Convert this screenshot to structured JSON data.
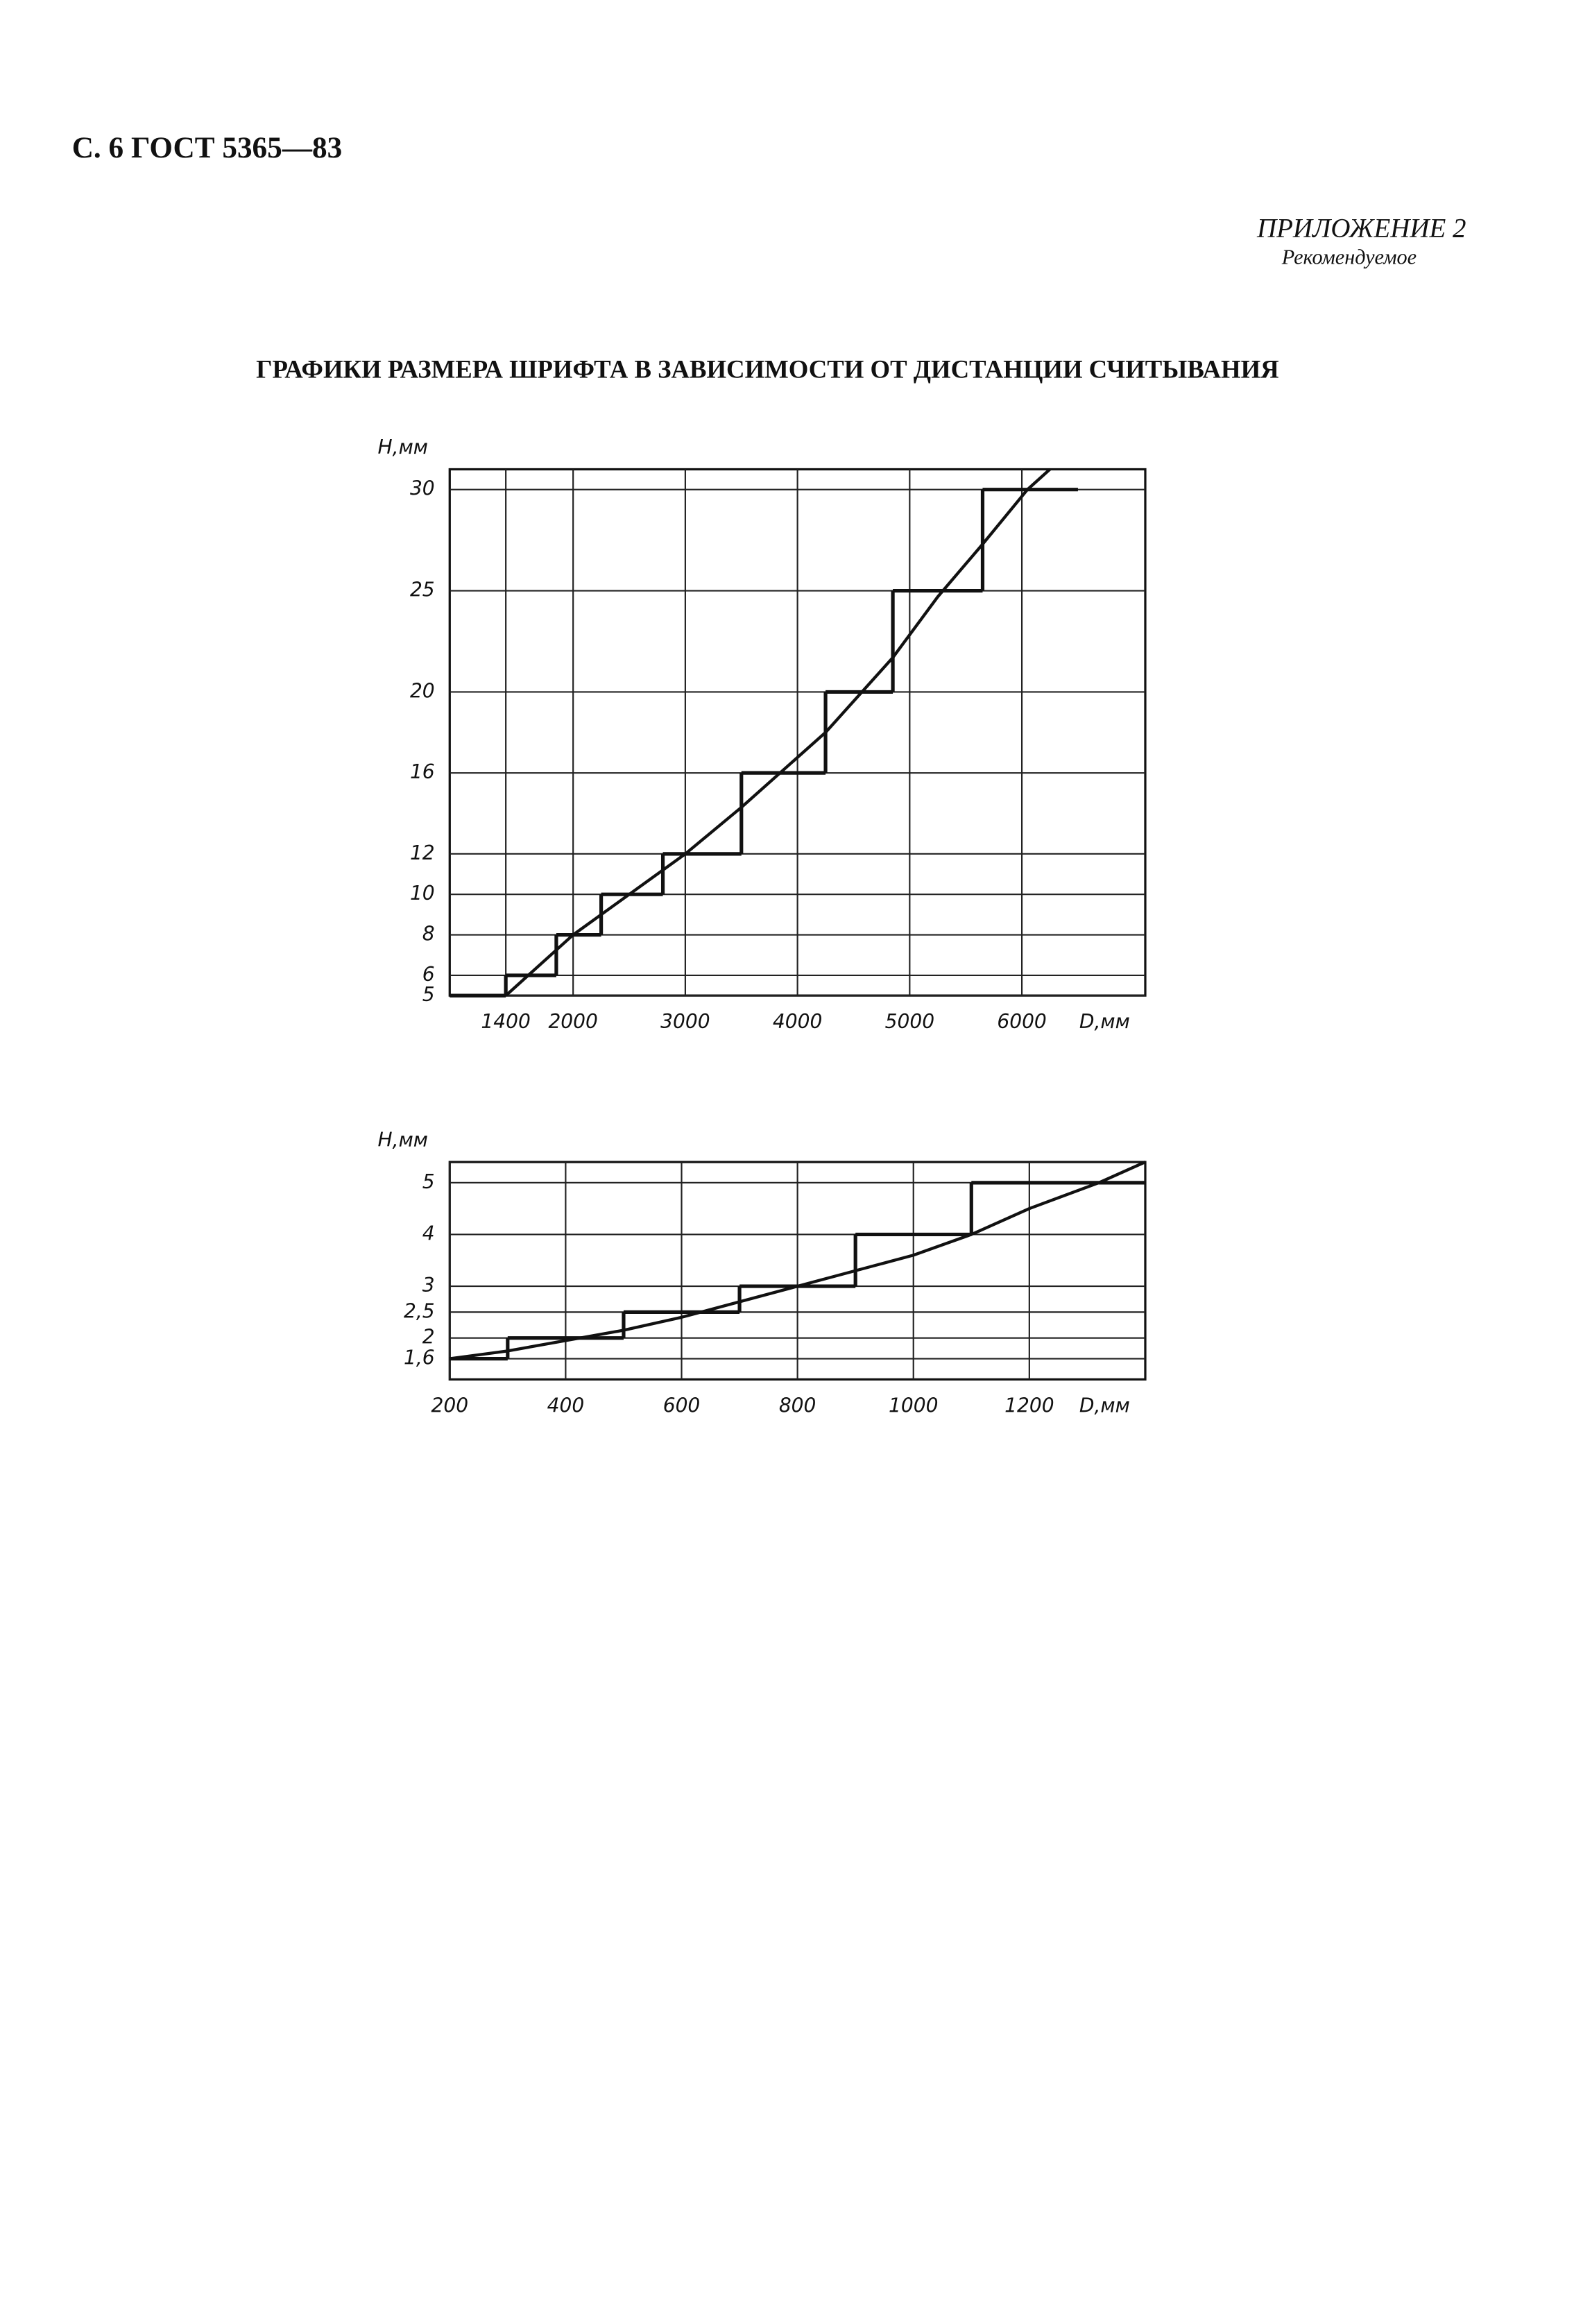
{
  "header": {
    "page": "С. 6 ГОСТ 5365—83",
    "appendix": "ПРИЛОЖЕНИЕ 2",
    "status": "Рекомендуемое",
    "title": "ГРАФИКИ РАЗМЕРА ШРИФТА В ЗАВИСИМОСТИ ОТ ДИСТАНЦИИ СЧИТЫВАНИЯ"
  },
  "chart_data": [
    {
      "type": "line",
      "y_label": "H,мм",
      "x_label": "D,мм",
      "grid": true,
      "color": "#111111",
      "xlim": [
        900,
        7100
      ],
      "ylim": [
        5,
        31
      ],
      "xticks": [
        1400,
        2000,
        3000,
        4000,
        5000,
        6000
      ],
      "yticks": [
        5,
        6,
        8,
        10,
        12,
        16,
        20,
        25,
        30
      ],
      "series": [
        {
          "type": "step",
          "bins": [
            900,
            1400,
            1850,
            2250,
            2800,
            3500,
            4250,
            4850,
            5650,
            6500
          ],
          "values": [
            5,
            6,
            8,
            10,
            12,
            16,
            20,
            25,
            30
          ]
        },
        {
          "type": "line",
          "x": [
            1400,
            2000,
            3000,
            3500,
            4250,
            4850,
            5250,
            5650,
            6050,
            6250
          ],
          "values": [
            5,
            8,
            12,
            14.3,
            18,
            21.7,
            24.7,
            27.3,
            30,
            31
          ]
        }
      ]
    },
    {
      "type": "line",
      "y_label": "H,мм",
      "x_label": "D,мм",
      "grid": true,
      "color": "#111111",
      "xlim": [
        200,
        1400
      ],
      "ylim": [
        1.2,
        5.4
      ],
      "xticks": [
        200,
        400,
        600,
        800,
        1000,
        1200
      ],
      "yticks": [
        {
          "value": 1.6,
          "label": "1,6"
        },
        2,
        {
          "value": 2.5,
          "label": "2,5"
        },
        3,
        4,
        5
      ],
      "series": [
        {
          "type": "step",
          "bins": [
            200,
            300,
            500,
            700,
            900,
            1100,
            1400
          ],
          "values": [
            1.6,
            2,
            2.5,
            3,
            4,
            5
          ]
        },
        {
          "type": "line",
          "x": [
            200,
            300,
            500,
            600,
            800,
            1000,
            1100,
            1200,
            1320,
            1400
          ],
          "values": [
            1.6,
            1.75,
            2.15,
            2.4,
            3,
            3.6,
            4,
            4.5,
            5,
            5.4
          ]
        }
      ]
    }
  ]
}
